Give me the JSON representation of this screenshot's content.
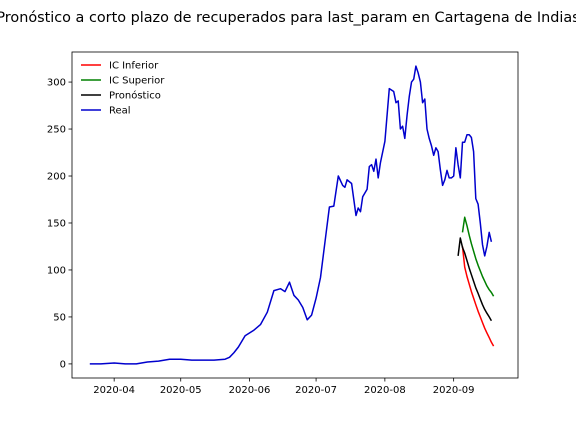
{
  "chart_data": {
    "type": "line",
    "title": "Pronóstico a corto plazo de recuperados para last_param en Cartagena de Indias",
    "xlabel": "",
    "ylabel": "",
    "x_axis": "date",
    "xlim": [
      "2020-03-13",
      "2020-09-30"
    ],
    "ylim": [
      -15,
      332
    ],
    "x_ticks": [
      "2020-04",
      "2020-05",
      "2020-06",
      "2020-07",
      "2020-08",
      "2020-09"
    ],
    "x_tick_dates": [
      "2020-04-01",
      "2020-05-01",
      "2020-06-01",
      "2020-07-01",
      "2020-08-01",
      "2020-09-01"
    ],
    "y_ticks": [
      0,
      50,
      100,
      150,
      200,
      250,
      300
    ],
    "grid": false,
    "legend_position": "top-left",
    "series": [
      {
        "name": "IC Inferior",
        "color": "#ff0000",
        "points": [
          [
            "2020-09-05",
            125
          ],
          [
            "2020-09-06",
            103
          ],
          [
            "2020-09-07",
            93
          ],
          [
            "2020-09-08",
            85
          ],
          [
            "2020-09-09",
            77
          ],
          [
            "2020-09-10",
            70
          ],
          [
            "2020-09-11",
            63
          ],
          [
            "2020-09-12",
            56
          ],
          [
            "2020-09-13",
            50
          ],
          [
            "2020-09-14",
            44
          ],
          [
            "2020-09-15",
            38
          ],
          [
            "2020-09-16",
            33
          ],
          [
            "2020-09-17",
            28
          ],
          [
            "2020-09-18",
            23
          ],
          [
            "2020-09-19",
            19
          ]
        ]
      },
      {
        "name": "IC Superior",
        "color": "#008000",
        "points": [
          [
            "2020-09-05",
            140
          ],
          [
            "2020-09-06",
            156
          ],
          [
            "2020-09-07",
            147
          ],
          [
            "2020-09-08",
            137
          ],
          [
            "2020-09-09",
            128
          ],
          [
            "2020-09-10",
            120
          ],
          [
            "2020-09-11",
            112
          ],
          [
            "2020-09-12",
            105
          ],
          [
            "2020-09-13",
            99
          ],
          [
            "2020-09-14",
            93
          ],
          [
            "2020-09-15",
            88
          ],
          [
            "2020-09-16",
            83
          ],
          [
            "2020-09-17",
            79
          ],
          [
            "2020-09-18",
            76
          ],
          [
            "2020-09-19",
            72
          ]
        ]
      },
      {
        "name": "Pronóstico",
        "color": "#000000",
        "points": [
          [
            "2020-09-03",
            115
          ],
          [
            "2020-09-04",
            134
          ],
          [
            "2020-09-05",
            124
          ],
          [
            "2020-09-06",
            118
          ],
          [
            "2020-09-07",
            110
          ],
          [
            "2020-09-08",
            102
          ],
          [
            "2020-09-09",
            95
          ],
          [
            "2020-09-10",
            88
          ],
          [
            "2020-09-11",
            81
          ],
          [
            "2020-09-12",
            75
          ],
          [
            "2020-09-13",
            69
          ],
          [
            "2020-09-14",
            63
          ],
          [
            "2020-09-15",
            58
          ],
          [
            "2020-09-16",
            54
          ],
          [
            "2020-09-17",
            50
          ],
          [
            "2020-09-18",
            46
          ]
        ]
      },
      {
        "name": "Real",
        "color": "#0000cd",
        "points": [
          [
            "2020-03-21",
            0
          ],
          [
            "2020-03-26",
            0
          ],
          [
            "2020-04-01",
            1
          ],
          [
            "2020-04-06",
            0
          ],
          [
            "2020-04-11",
            0
          ],
          [
            "2020-04-16",
            2
          ],
          [
            "2020-04-21",
            3
          ],
          [
            "2020-04-26",
            5
          ],
          [
            "2020-05-01",
            5
          ],
          [
            "2020-05-06",
            4
          ],
          [
            "2020-05-11",
            4
          ],
          [
            "2020-05-16",
            4
          ],
          [
            "2020-05-21",
            5
          ],
          [
            "2020-05-23",
            7
          ],
          [
            "2020-05-25",
            12
          ],
          [
            "2020-05-27",
            18
          ],
          [
            "2020-05-30",
            30
          ],
          [
            "2020-06-03",
            36
          ],
          [
            "2020-06-06",
            42
          ],
          [
            "2020-06-09",
            55
          ],
          [
            "2020-06-12",
            78
          ],
          [
            "2020-06-15",
            80
          ],
          [
            "2020-06-17",
            77
          ],
          [
            "2020-06-19",
            87
          ],
          [
            "2020-06-21",
            73
          ],
          [
            "2020-06-23",
            68
          ],
          [
            "2020-06-25",
            60
          ],
          [
            "2020-06-27",
            47
          ],
          [
            "2020-06-29",
            52
          ],
          [
            "2020-07-01",
            70
          ],
          [
            "2020-07-03",
            92
          ],
          [
            "2020-07-05",
            130
          ],
          [
            "2020-07-07",
            167
          ],
          [
            "2020-07-09",
            168
          ],
          [
            "2020-07-11",
            200
          ],
          [
            "2020-07-13",
            190
          ],
          [
            "2020-07-14",
            188
          ],
          [
            "2020-07-15",
            196
          ],
          [
            "2020-07-17",
            192
          ],
          [
            "2020-07-18",
            175
          ],
          [
            "2020-07-19",
            158
          ],
          [
            "2020-07-20",
            166
          ],
          [
            "2020-07-21",
            162
          ],
          [
            "2020-07-22",
            178
          ],
          [
            "2020-07-24",
            186
          ],
          [
            "2020-07-25",
            210
          ],
          [
            "2020-07-26",
            212
          ],
          [
            "2020-07-27",
            205
          ],
          [
            "2020-07-28",
            218
          ],
          [
            "2020-07-29",
            198
          ],
          [
            "2020-07-30",
            214
          ],
          [
            "2020-08-01",
            237
          ],
          [
            "2020-08-03",
            293
          ],
          [
            "2020-08-05",
            290
          ],
          [
            "2020-08-06",
            278
          ],
          [
            "2020-08-07",
            280
          ],
          [
            "2020-08-08",
            250
          ],
          [
            "2020-08-09",
            253
          ],
          [
            "2020-08-10",
            240
          ],
          [
            "2020-08-11",
            265
          ],
          [
            "2020-08-12",
            285
          ],
          [
            "2020-08-13",
            300
          ],
          [
            "2020-08-14",
            303
          ],
          [
            "2020-08-15",
            317
          ],
          [
            "2020-08-16",
            310
          ],
          [
            "2020-08-17",
            300
          ],
          [
            "2020-08-18",
            278
          ],
          [
            "2020-08-19",
            282
          ],
          [
            "2020-08-20",
            250
          ],
          [
            "2020-08-21",
            240
          ],
          [
            "2020-08-22",
            232
          ],
          [
            "2020-08-23",
            222
          ],
          [
            "2020-08-24",
            230
          ],
          [
            "2020-08-25",
            226
          ],
          [
            "2020-08-26",
            207
          ],
          [
            "2020-08-27",
            190
          ],
          [
            "2020-08-28",
            196
          ],
          [
            "2020-08-29",
            206
          ],
          [
            "2020-08-30",
            198
          ],
          [
            "2020-08-31",
            198
          ],
          [
            "2020-09-01",
            200
          ],
          [
            "2020-09-02",
            230
          ],
          [
            "2020-09-03",
            212
          ],
          [
            "2020-09-04",
            198
          ],
          [
            "2020-09-05",
            236
          ],
          [
            "2020-09-06",
            236
          ],
          [
            "2020-09-07",
            244
          ],
          [
            "2020-09-08",
            244
          ],
          [
            "2020-09-09",
            241
          ],
          [
            "2020-09-10",
            226
          ],
          [
            "2020-09-11",
            176
          ],
          [
            "2020-09-12",
            170
          ],
          [
            "2020-09-13",
            150
          ],
          [
            "2020-09-14",
            127
          ],
          [
            "2020-09-15",
            115
          ],
          [
            "2020-09-16",
            125
          ],
          [
            "2020-09-17",
            140
          ],
          [
            "2020-09-18",
            130
          ]
        ]
      }
    ]
  }
}
